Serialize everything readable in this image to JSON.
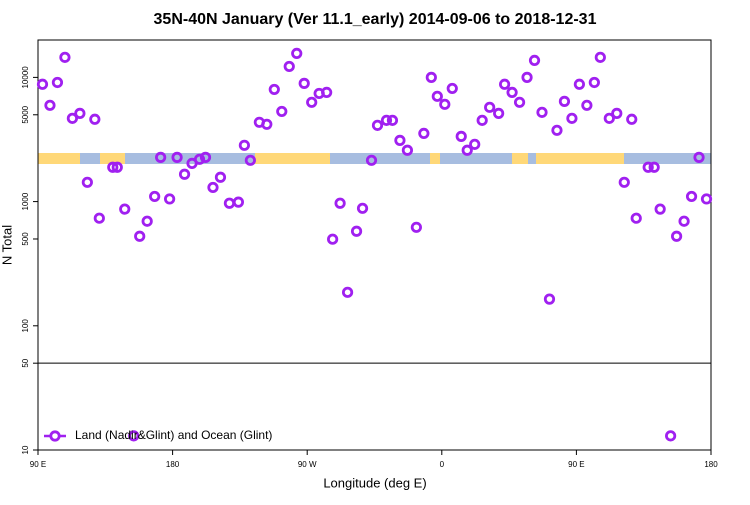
{
  "chart_data": {
    "type": "scatter",
    "title": "35N-40N January (Ver 11.1_early)   2014-09-06 to 2018-12-31",
    "xlabel": "Longitude (deg E)",
    "ylabel": "N Total",
    "yscale": "log",
    "ylim": [
      10,
      20000
    ],
    "yticks": [
      10,
      50,
      100,
      500,
      1000,
      5000,
      10000
    ],
    "xlim": [
      90,
      540
    ],
    "xticks": [
      {
        "value": 90,
        "label": "90 E"
      },
      {
        "value": 180,
        "label": "180"
      },
      {
        "value": 270,
        "label": "90 W"
      },
      {
        "value": 360,
        "label": "0"
      },
      {
        "value": 450,
        "label": "90 E"
      },
      {
        "value": 540,
        "label": "180"
      }
    ],
    "hlines": [
      50
    ],
    "legend": "lower left",
    "series": [
      {
        "name": "Land (Nadir&Glint) and Ocean (Glint)",
        "color": "#a020f0",
        "x": [
          93,
          98,
          103,
          108,
          113,
          118,
          123,
          128,
          131,
          140,
          143,
          148,
          154,
          158,
          163,
          168,
          172,
          178,
          183,
          188,
          193,
          198,
          202,
          207,
          212,
          218,
          224,
          228,
          232,
          238,
          243,
          248,
          253,
          258,
          263,
          268,
          273,
          278,
          283,
          287,
          292,
          297,
          303,
          307,
          313,
          317,
          323,
          327,
          332,
          337,
          343,
          348,
          353,
          357,
          362,
          367,
          373,
          377,
          382,
          387,
          392,
          398,
          402,
          407,
          412,
          417,
          422,
          427,
          432,
          437,
          442,
          447,
          452,
          457,
          462,
          466,
          472,
          477,
          482,
          487,
          490,
          498,
          502,
          506,
          513,
          517,
          522,
          527,
          532,
          537
        ],
        "values": [
          8800,
          5960,
          9100,
          14500,
          4680,
          5130,
          1430,
          4600,
          735,
          1890,
          1890,
          870,
          13,
          526,
          695,
          1100,
          2270,
          1050,
          2270,
          1660,
          2030,
          2190,
          2270,
          1300,
          1570,
          970,
          990,
          2840,
          2150,
          4350,
          4190,
          8000,
          5320,
          12250,
          15600,
          8950,
          6300,
          7430,
          7570,
          498,
          970,
          186,
          577,
          883,
          2150,
          4110,
          4510,
          4510,
          3110,
          2590,
          621,
          3540,
          10000,
          7040,
          6070,
          8150,
          3350,
          2590,
          2890,
          4510,
          5740,
          5130,
          8800,
          7570,
          6300,
          10000,
          13700,
          5230,
          164,
          3750,
          6410,
          4680,
          8800,
          5960,
          9100,
          14500,
          4680,
          5130,
          1430,
          4600,
          735,
          1890,
          1890,
          870,
          13,
          526,
          695,
          1100,
          2270,
          1050
        ]
      }
    ]
  }
}
